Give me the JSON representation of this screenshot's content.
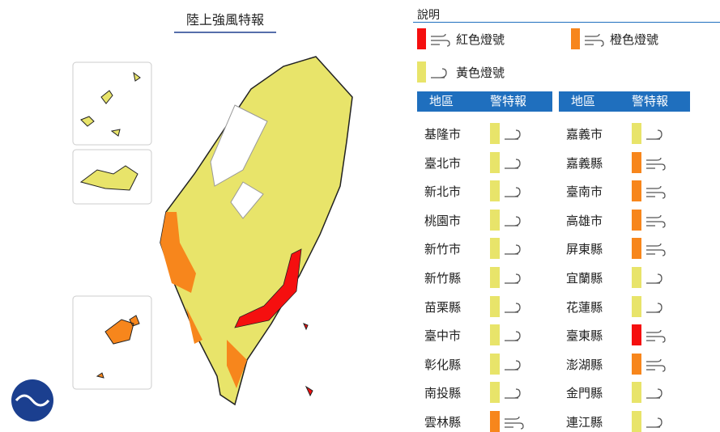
{
  "title": "陸上強風特報",
  "legend": {
    "title": "說明",
    "items": [
      {
        "label": "紅色燈號",
        "color": "#f50f0f"
      },
      {
        "label": "橙色燈號",
        "color": "#f7861c"
      },
      {
        "label": "黃色燈號",
        "color": "#e8e46a"
      }
    ]
  },
  "table": {
    "headers": [
      "地區",
      "警特報"
    ],
    "columns": [
      [
        {
          "name": "基隆市",
          "color": "#e8e46a"
        },
        {
          "name": "臺北市",
          "color": "#e8e46a"
        },
        {
          "name": "新北市",
          "color": "#e8e46a"
        },
        {
          "name": "桃園市",
          "color": "#e8e46a"
        },
        {
          "name": "新竹市",
          "color": "#e8e46a"
        },
        {
          "name": "新竹縣",
          "color": "#e8e46a"
        },
        {
          "name": "苗栗縣",
          "color": "#e8e46a"
        },
        {
          "name": "臺中市",
          "color": "#e8e46a"
        },
        {
          "name": "彰化縣",
          "color": "#e8e46a"
        },
        {
          "name": "南投縣",
          "color": "#e8e46a"
        },
        {
          "name": "雲林縣",
          "color": "#f7861c"
        }
      ],
      [
        {
          "name": "嘉義市",
          "color": "#e8e46a"
        },
        {
          "name": "嘉義縣",
          "color": "#f7861c"
        },
        {
          "name": "臺南市",
          "color": "#f7861c"
        },
        {
          "name": "高雄市",
          "color": "#f7861c"
        },
        {
          "name": "屏東縣",
          "color": "#f7861c"
        },
        {
          "name": "宜蘭縣",
          "color": "#e8e46a"
        },
        {
          "name": "花蓮縣",
          "color": "#e8e46a"
        },
        {
          "name": "臺東縣",
          "color": "#f50f0f"
        },
        {
          "name": "澎湖縣",
          "color": "#f7861c"
        },
        {
          "name": "金門縣",
          "color": "#e8e46a"
        },
        {
          "name": "連江縣",
          "color": "#e8e46a"
        }
      ]
    ]
  }
}
